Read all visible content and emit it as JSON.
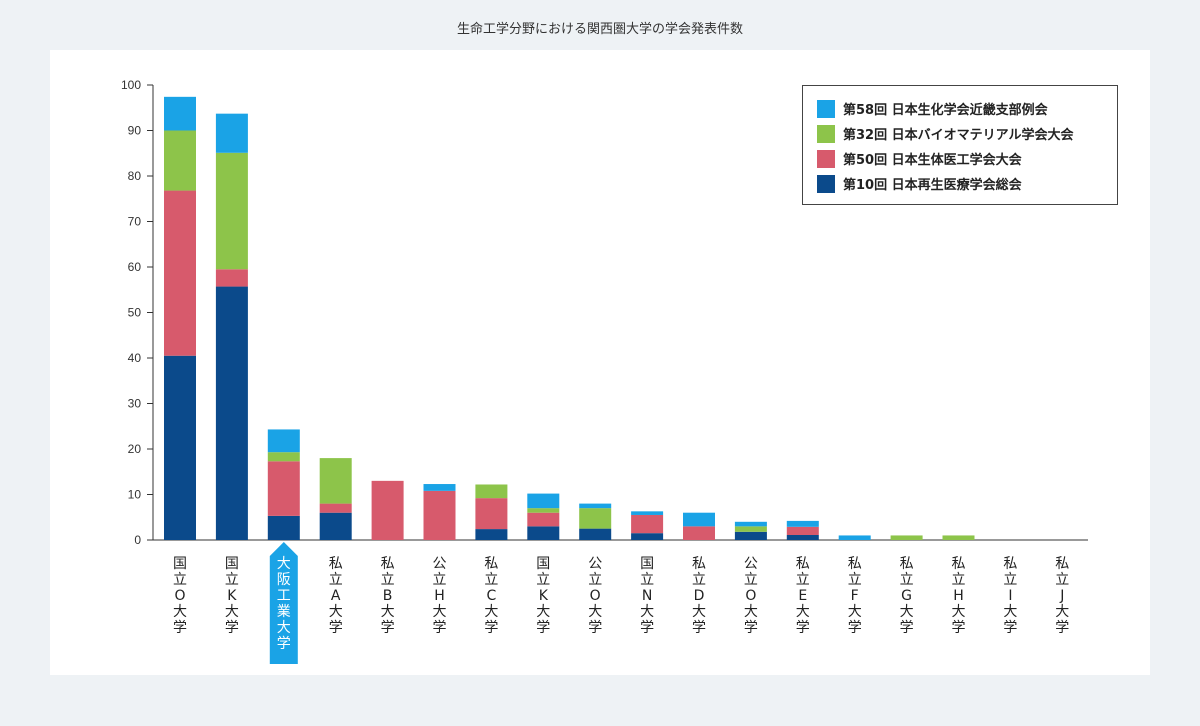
{
  "chart_data": {
    "type": "bar",
    "stacked": true,
    "title": "生命工学分野における関西圏大学の学会発表件数",
    "xlabel": "",
    "ylabel": "",
    "ylim": [
      0,
      100
    ],
    "yticks": [
      0,
      10,
      20,
      30,
      40,
      50,
      60,
      70,
      80,
      90,
      100
    ],
    "grid": false,
    "legend_position": "top-right",
    "categories": [
      "国立O大学",
      "国立K大学",
      "大阪工業大学",
      "私立A大学",
      "私立B大学",
      "公立H大学",
      "私立C大学",
      "国立K大学",
      "公立O大学",
      "国立N大学",
      "私立D大学",
      "公立O大学",
      "私立E大学",
      "私立F大学",
      "私立G大学",
      "私立H大学",
      "私立I大学",
      "私立J大学"
    ],
    "highlight_category": "大阪工業大学",
    "series": [
      {
        "name": "第10回 日本再生医療学会総会",
        "color": "#0b4a8b",
        "values": [
          40.5,
          55.7,
          5.3,
          6.0,
          0,
          0,
          2.4,
          3.0,
          2.5,
          1.5,
          0,
          1.8,
          1.1,
          0,
          0,
          0,
          0,
          0
        ]
      },
      {
        "name": "第50回 日本生体医工学会大会",
        "color": "#d75a6c",
        "values": [
          36.3,
          3.8,
          12.0,
          2.0,
          13.0,
          10.8,
          6.8,
          3.0,
          0,
          4.0,
          3.0,
          0,
          1.8,
          0,
          0,
          0,
          0,
          0
        ]
      },
      {
        "name": "第32回 日本バイオマテリアル学会大会",
        "color": "#8dc44a",
        "values": [
          13.2,
          25.6,
          2.0,
          10.0,
          0,
          0,
          3.0,
          1.0,
          4.5,
          0,
          0,
          1.2,
          0,
          0,
          1.0,
          1.0,
          0,
          0
        ]
      },
      {
        "name": "第58回 日本生化学会近畿支部例会",
        "color": "#1aa3e6",
        "values": [
          7.4,
          8.6,
          5.0,
          0,
          0,
          1.5,
          0,
          3.2,
          1.0,
          0.8,
          3.0,
          1.0,
          1.3,
          1.0,
          0,
          0,
          0,
          0
        ]
      }
    ]
  },
  "legend": [
    {
      "label": "第58回 日本生化学会近畿支部例会",
      "color": "#1aa3e6"
    },
    {
      "label": "第32回 日本バイオマテリアル学会大会",
      "color": "#8dc44a"
    },
    {
      "label": "第50回 日本生体医工学会大会",
      "color": "#d75a6c"
    },
    {
      "label": "第10回 日本再生医療学会総会",
      "color": "#0b4a8b"
    }
  ],
  "colors": {
    "axis": "#333333",
    "highlight": "#1aa3e6",
    "panel": "#ffffff",
    "page": "#eef2f5"
  }
}
